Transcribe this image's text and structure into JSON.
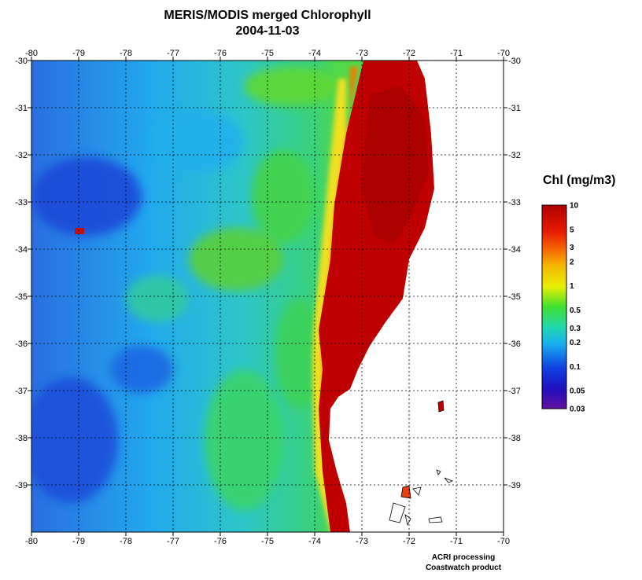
{
  "title": {
    "line1": "MERIS/MODIS merged Chlorophyll",
    "line2": "2004-11-03"
  },
  "map": {
    "lon_range": [
      -80,
      -70
    ],
    "lat_range": [
      -40,
      -30
    ],
    "lon_ticks": [
      "-80",
      "-79",
      "-78",
      "-77",
      "-76",
      "-75",
      "-74",
      "-73",
      "-72",
      "-71",
      "-70"
    ],
    "lat_ticks": [
      "-30",
      "-31",
      "-32",
      "-33",
      "-34",
      "-35",
      "-36",
      "-37",
      "-38",
      "-39"
    ],
    "grid": "dotted",
    "land_color": "#ffffff",
    "colors": {
      "very_low": "#1a3fd0",
      "low": "#19b4f0",
      "mid": "#2fd66a",
      "high": "#f5e21a",
      "very_high": "#b00000"
    }
  },
  "colorbar": {
    "title": "Chl (mg/m3)",
    "labels": [
      "10",
      "5",
      "3",
      "2",
      "1",
      "0.5",
      "0.3",
      "0.2",
      "0.1",
      "0.05",
      "0.03"
    ],
    "values": [
      10,
      5,
      3,
      2,
      1,
      0.5,
      0.3,
      0.2,
      0.1,
      0.05,
      0.03
    ],
    "range": [
      0.03,
      10
    ],
    "scale": "log"
  },
  "credits": {
    "line1": "ACRI processing",
    "line2": "Coastwatch product"
  }
}
